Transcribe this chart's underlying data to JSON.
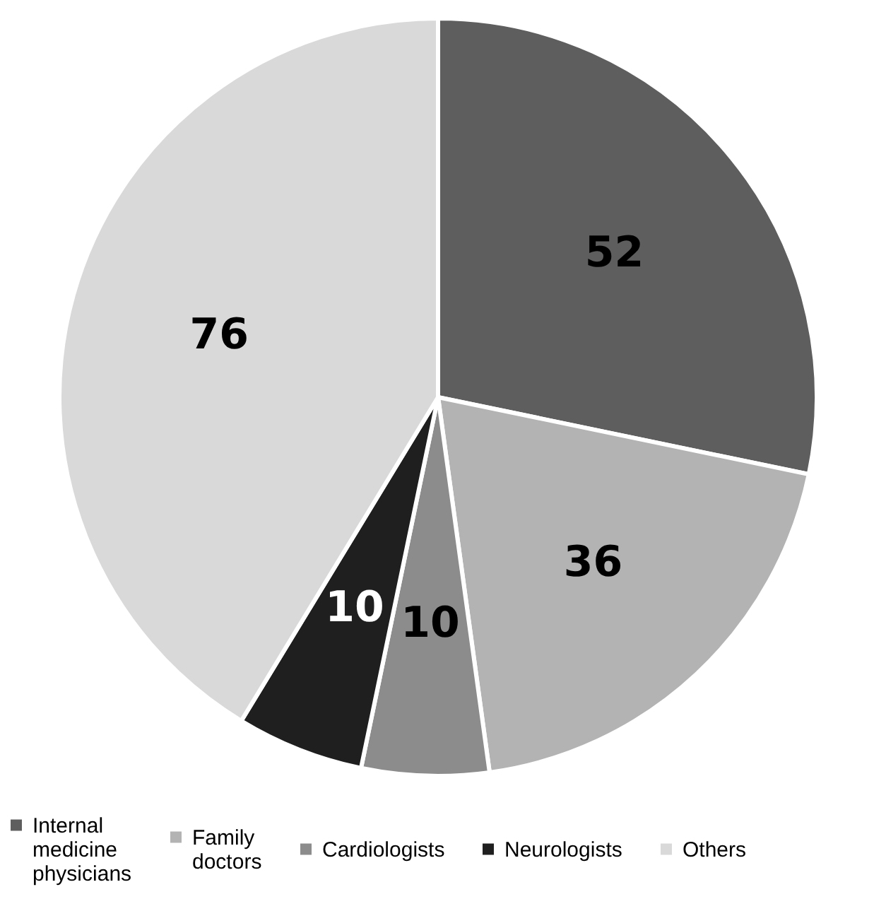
{
  "chart_data": {
    "type": "pie",
    "categories": [
      "Internal medicine physicians",
      "Family doctors",
      "Cardiologists",
      "Neurologists",
      "Others"
    ],
    "values": [
      52,
      36,
      10,
      10,
      76
    ],
    "colors": [
      "#5e5e5e",
      "#b3b3b3",
      "#8c8c8c",
      "#1f1f1f",
      "#d9d9d9"
    ],
    "data_labels": true,
    "legend": "bottom"
  }
}
